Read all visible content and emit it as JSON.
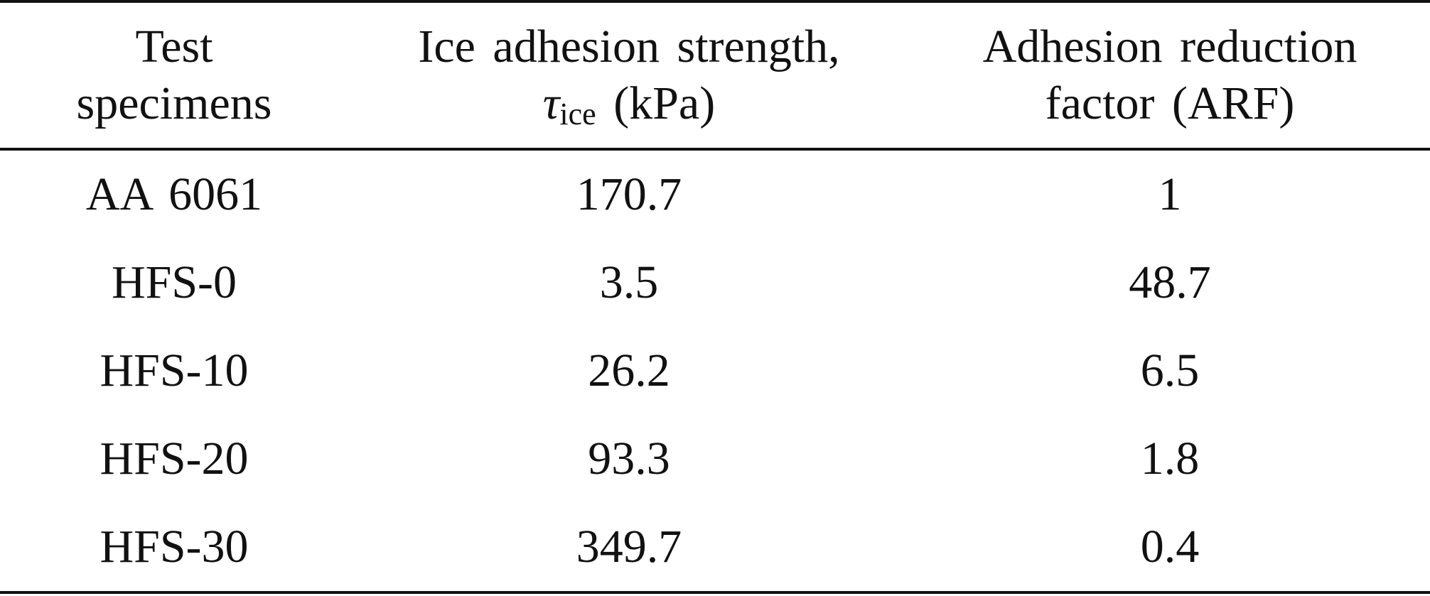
{
  "table": {
    "headers": {
      "col1": [
        "Test",
        "specimens"
      ],
      "col2_line1": "Ice adhesion strength,",
      "col2_symbol": "τ",
      "col2_subscript": "ice",
      "col2_unit": "(kPa)",
      "col3": [
        "Adhesion reduction",
        "factor (ARF)"
      ]
    },
    "rows": [
      {
        "specimen": "AA 6061",
        "strength": "170.7",
        "arf": "1"
      },
      {
        "specimen": "HFS-0",
        "strength": "3.5",
        "arf": "48.7"
      },
      {
        "specimen": "HFS-10",
        "strength": "26.2",
        "arf": "6.5"
      },
      {
        "specimen": "HFS-20",
        "strength": "93.3",
        "arf": "1.8"
      },
      {
        "specimen": "HFS-30",
        "strength": "349.7",
        "arf": "0.4"
      }
    ]
  }
}
